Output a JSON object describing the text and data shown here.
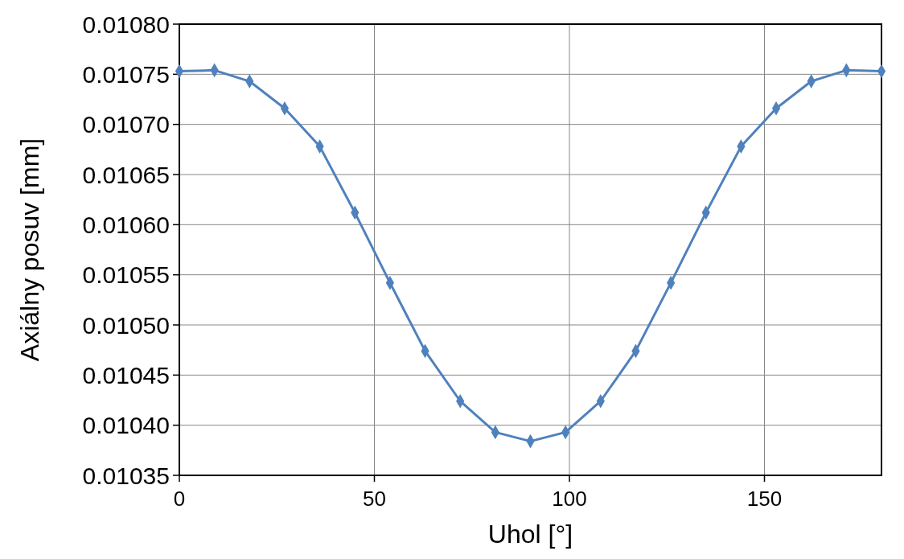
{
  "chart_data": {
    "type": "line",
    "xlabel": "Uhol [°]",
    "ylabel": "Axiálny posuv [mm]",
    "x": [
      0,
      9,
      18,
      27,
      36,
      45,
      54,
      63,
      72,
      81,
      90,
      99,
      108,
      117,
      126,
      135,
      144,
      153,
      162,
      171,
      180
    ],
    "series": [
      {
        "color": "#4f81bd",
        "values": [
          0.010753,
          0.010754,
          0.010743,
          0.010716,
          0.010678,
          0.010612,
          0.010542,
          0.010474,
          0.010424,
          0.010393,
          0.010384,
          0.010393,
          0.010424,
          0.010474,
          0.010542,
          0.010612,
          0.010678,
          0.010716,
          0.010743,
          0.010754,
          0.010753
        ]
      }
    ],
    "xlim": [
      0,
      180
    ],
    "xticks": [
      0,
      50,
      100,
      150
    ],
    "ylim": [
      0.01035,
      0.0108
    ],
    "yticks": [
      {
        "value": 0.01035,
        "label": "0.01035"
      },
      {
        "value": 0.0104,
        "label": "0.01040"
      },
      {
        "value": 0.01045,
        "label": "0.01045"
      },
      {
        "value": 0.0105,
        "label": "0.01050"
      },
      {
        "value": 0.01055,
        "label": "0.01055"
      },
      {
        "value": 0.0106,
        "label": "0.01060"
      },
      {
        "value": 0.01065,
        "label": "0.01065"
      },
      {
        "value": 0.0107,
        "label": "0.01070"
      },
      {
        "value": 0.01075,
        "label": "0.01075"
      },
      {
        "value": 0.0108,
        "label": "0.01080"
      }
    ],
    "grid": true,
    "marker": "diamond",
    "line_style": "solid"
  }
}
